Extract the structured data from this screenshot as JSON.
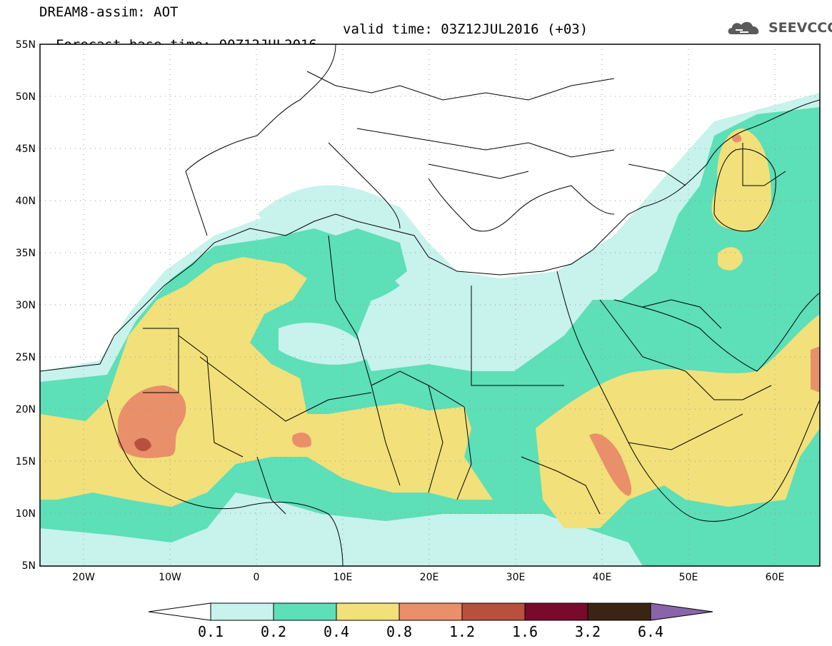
{
  "header": {
    "line1": "DREAM8-assim: AOT",
    "line2": "Forecast base time: 00Z12JUL2016",
    "valid": "valid time: 03Z12JUL2016 (+03)"
  },
  "logo": {
    "text": "SEEVCCC"
  },
  "axes": {
    "lat_labels": [
      "55N",
      "50N",
      "45N",
      "40N",
      "35N",
      "30N",
      "25N",
      "20N",
      "15N",
      "10N",
      "5N"
    ],
    "lon_labels": [
      "20W",
      "10W",
      "0",
      "10E",
      "20E",
      "30E",
      "40E",
      "50E",
      "60E"
    ]
  },
  "legend": {
    "labels": [
      "0.1",
      "0.2",
      "0.4",
      "0.8",
      "1.2",
      "1.6",
      "3.2",
      "6.4"
    ],
    "colors": [
      "#c8f2ec",
      "#5ddfb8",
      "#f2e07a",
      "#e98f6a",
      "#b7513d",
      "#7a0a2c",
      "#3c2414",
      "#8a64a8"
    ],
    "low_color": "#ffffff"
  },
  "map_colors": {
    "band_0_1": "#c8f2ec",
    "band_0_2": "#5ddfb8",
    "band_0_4": "#f2e07a",
    "band_0_8": "#e98f6a",
    "band_1_2": "#b7513d"
  }
}
